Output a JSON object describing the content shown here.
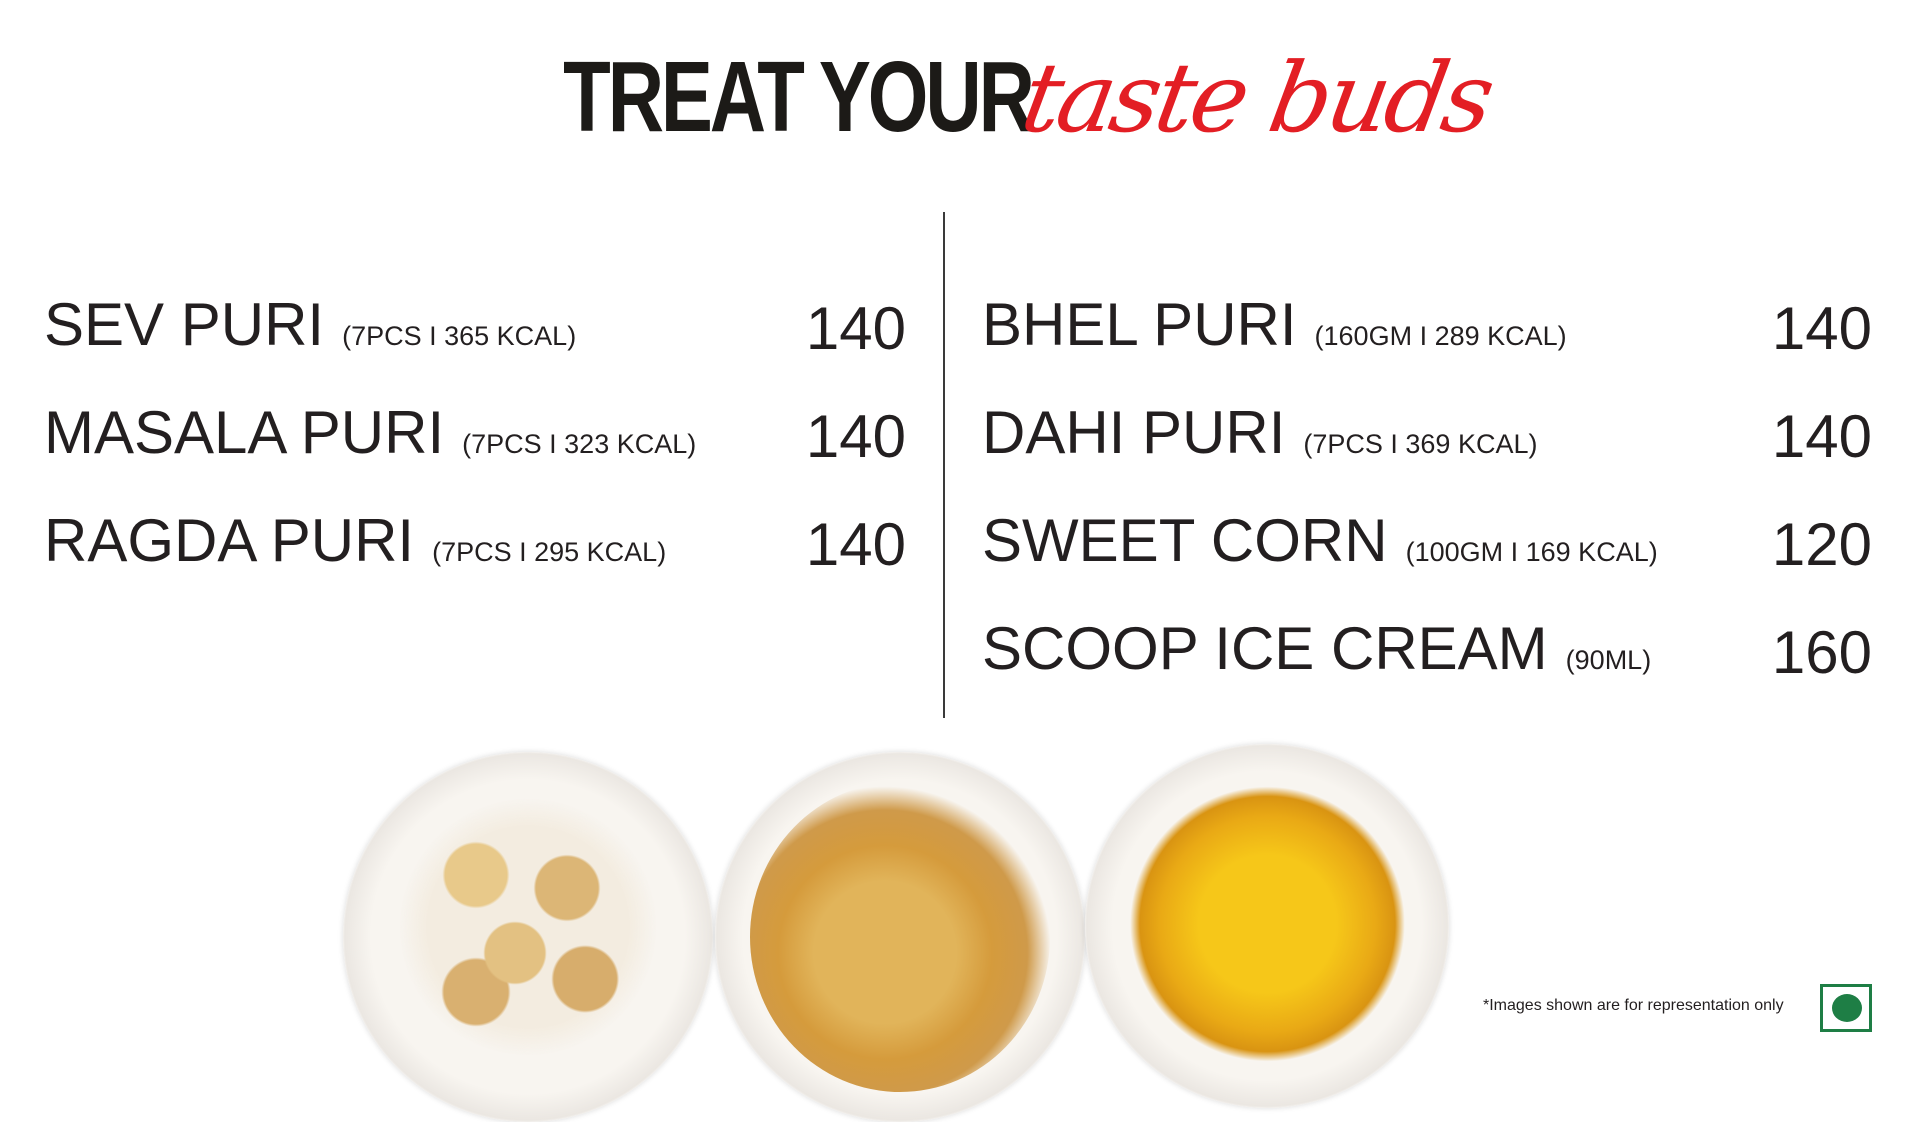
{
  "header": {
    "title_bold": "TREAT YOUR",
    "title_script": "taste buds"
  },
  "left_column": [
    {
      "name": "SEV PURI",
      "meta": "(7PCS I 365 KCAL)",
      "price": "140"
    },
    {
      "name": "MASALA PURI",
      "meta": "(7PCS I 323 KCAL)",
      "price": "140"
    },
    {
      "name": "RAGDA PURI",
      "meta": "(7PCS I 295 KCAL)",
      "price": "140"
    }
  ],
  "right_column": [
    {
      "name": "BHEL PURI",
      "meta": "(160GM I 289 KCAL)",
      "price": "140"
    },
    {
      "name": "DAHI PURI",
      "meta": "(7PCS I 369 KCAL)",
      "price": "140"
    },
    {
      "name": "SWEET CORN",
      "meta": "(100GM I 169 KCAL)",
      "price": "120"
    },
    {
      "name": "SCOOP ICE CREAM",
      "meta": "(90ML)",
      "price": "160"
    }
  ],
  "footer": {
    "note": "*Images shown are for representation only",
    "veg_icon": "veg-symbol-icon"
  },
  "colors": {
    "accent": "#e31e24",
    "text": "#231f20",
    "veg": "#1e7e45"
  }
}
